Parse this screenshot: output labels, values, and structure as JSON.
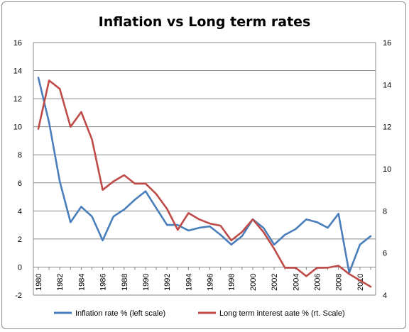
{
  "chart_data": {
    "type": "line",
    "title": "Inflation vs Long term rates",
    "x": [
      1980,
      1981,
      1982,
      1983,
      1984,
      1985,
      1986,
      1987,
      1988,
      1989,
      1990,
      1991,
      1992,
      1993,
      1994,
      1995,
      1996,
      1997,
      1998,
      1999,
      2000,
      2001,
      2002,
      2003,
      2004,
      2005,
      2006,
      2007,
      2008,
      2009,
      2010,
      2011
    ],
    "x_tick_labels": [
      "1980",
      "1982",
      "1984",
      "1986",
      "1988",
      "1990",
      "1992",
      "1994",
      "1996",
      "1998",
      "2000",
      "2002",
      "2004",
      "2006",
      "2008",
      "2010"
    ],
    "y_left": {
      "ylim": [
        -2,
        16
      ],
      "ticks": [
        "-2",
        "0",
        "2",
        "4",
        "6",
        "8",
        "10",
        "12",
        "14",
        "16"
      ]
    },
    "y_right": {
      "ylim": [
        4,
        16
      ],
      "ticks": [
        "4",
        "6",
        "8",
        "10",
        "12",
        "14",
        "16"
      ]
    },
    "grid": true,
    "legend_position": "bottom",
    "series": [
      {
        "name": "Inflation rate % (left scale)",
        "axis": "left",
        "color": "#4a7ebb",
        "values": [
          13.5,
          10.3,
          6.1,
          3.2,
          4.3,
          3.6,
          1.9,
          3.6,
          4.1,
          4.8,
          5.4,
          4.2,
          3.0,
          3.0,
          2.6,
          2.8,
          2.9,
          2.3,
          1.6,
          2.2,
          3.4,
          2.8,
          1.6,
          2.3,
          2.7,
          3.4,
          3.2,
          2.8,
          3.8,
          -0.4,
          1.6,
          2.2
        ]
      },
      {
        "name": "Long term interest aate % (rt. Scale)",
        "axis": "right",
        "color": "#be4b48",
        "values": [
          11.9,
          14.2,
          13.8,
          12.0,
          12.7,
          11.4,
          9.0,
          9.4,
          9.7,
          9.3,
          9.3,
          8.8,
          8.1,
          7.1,
          7.9,
          7.6,
          7.4,
          7.3,
          6.6,
          7.0,
          7.6,
          7.0,
          6.2,
          5.3,
          5.3,
          4.9,
          5.3,
          5.3,
          5.4,
          5.0,
          4.7,
          4.4
        ]
      }
    ]
  }
}
